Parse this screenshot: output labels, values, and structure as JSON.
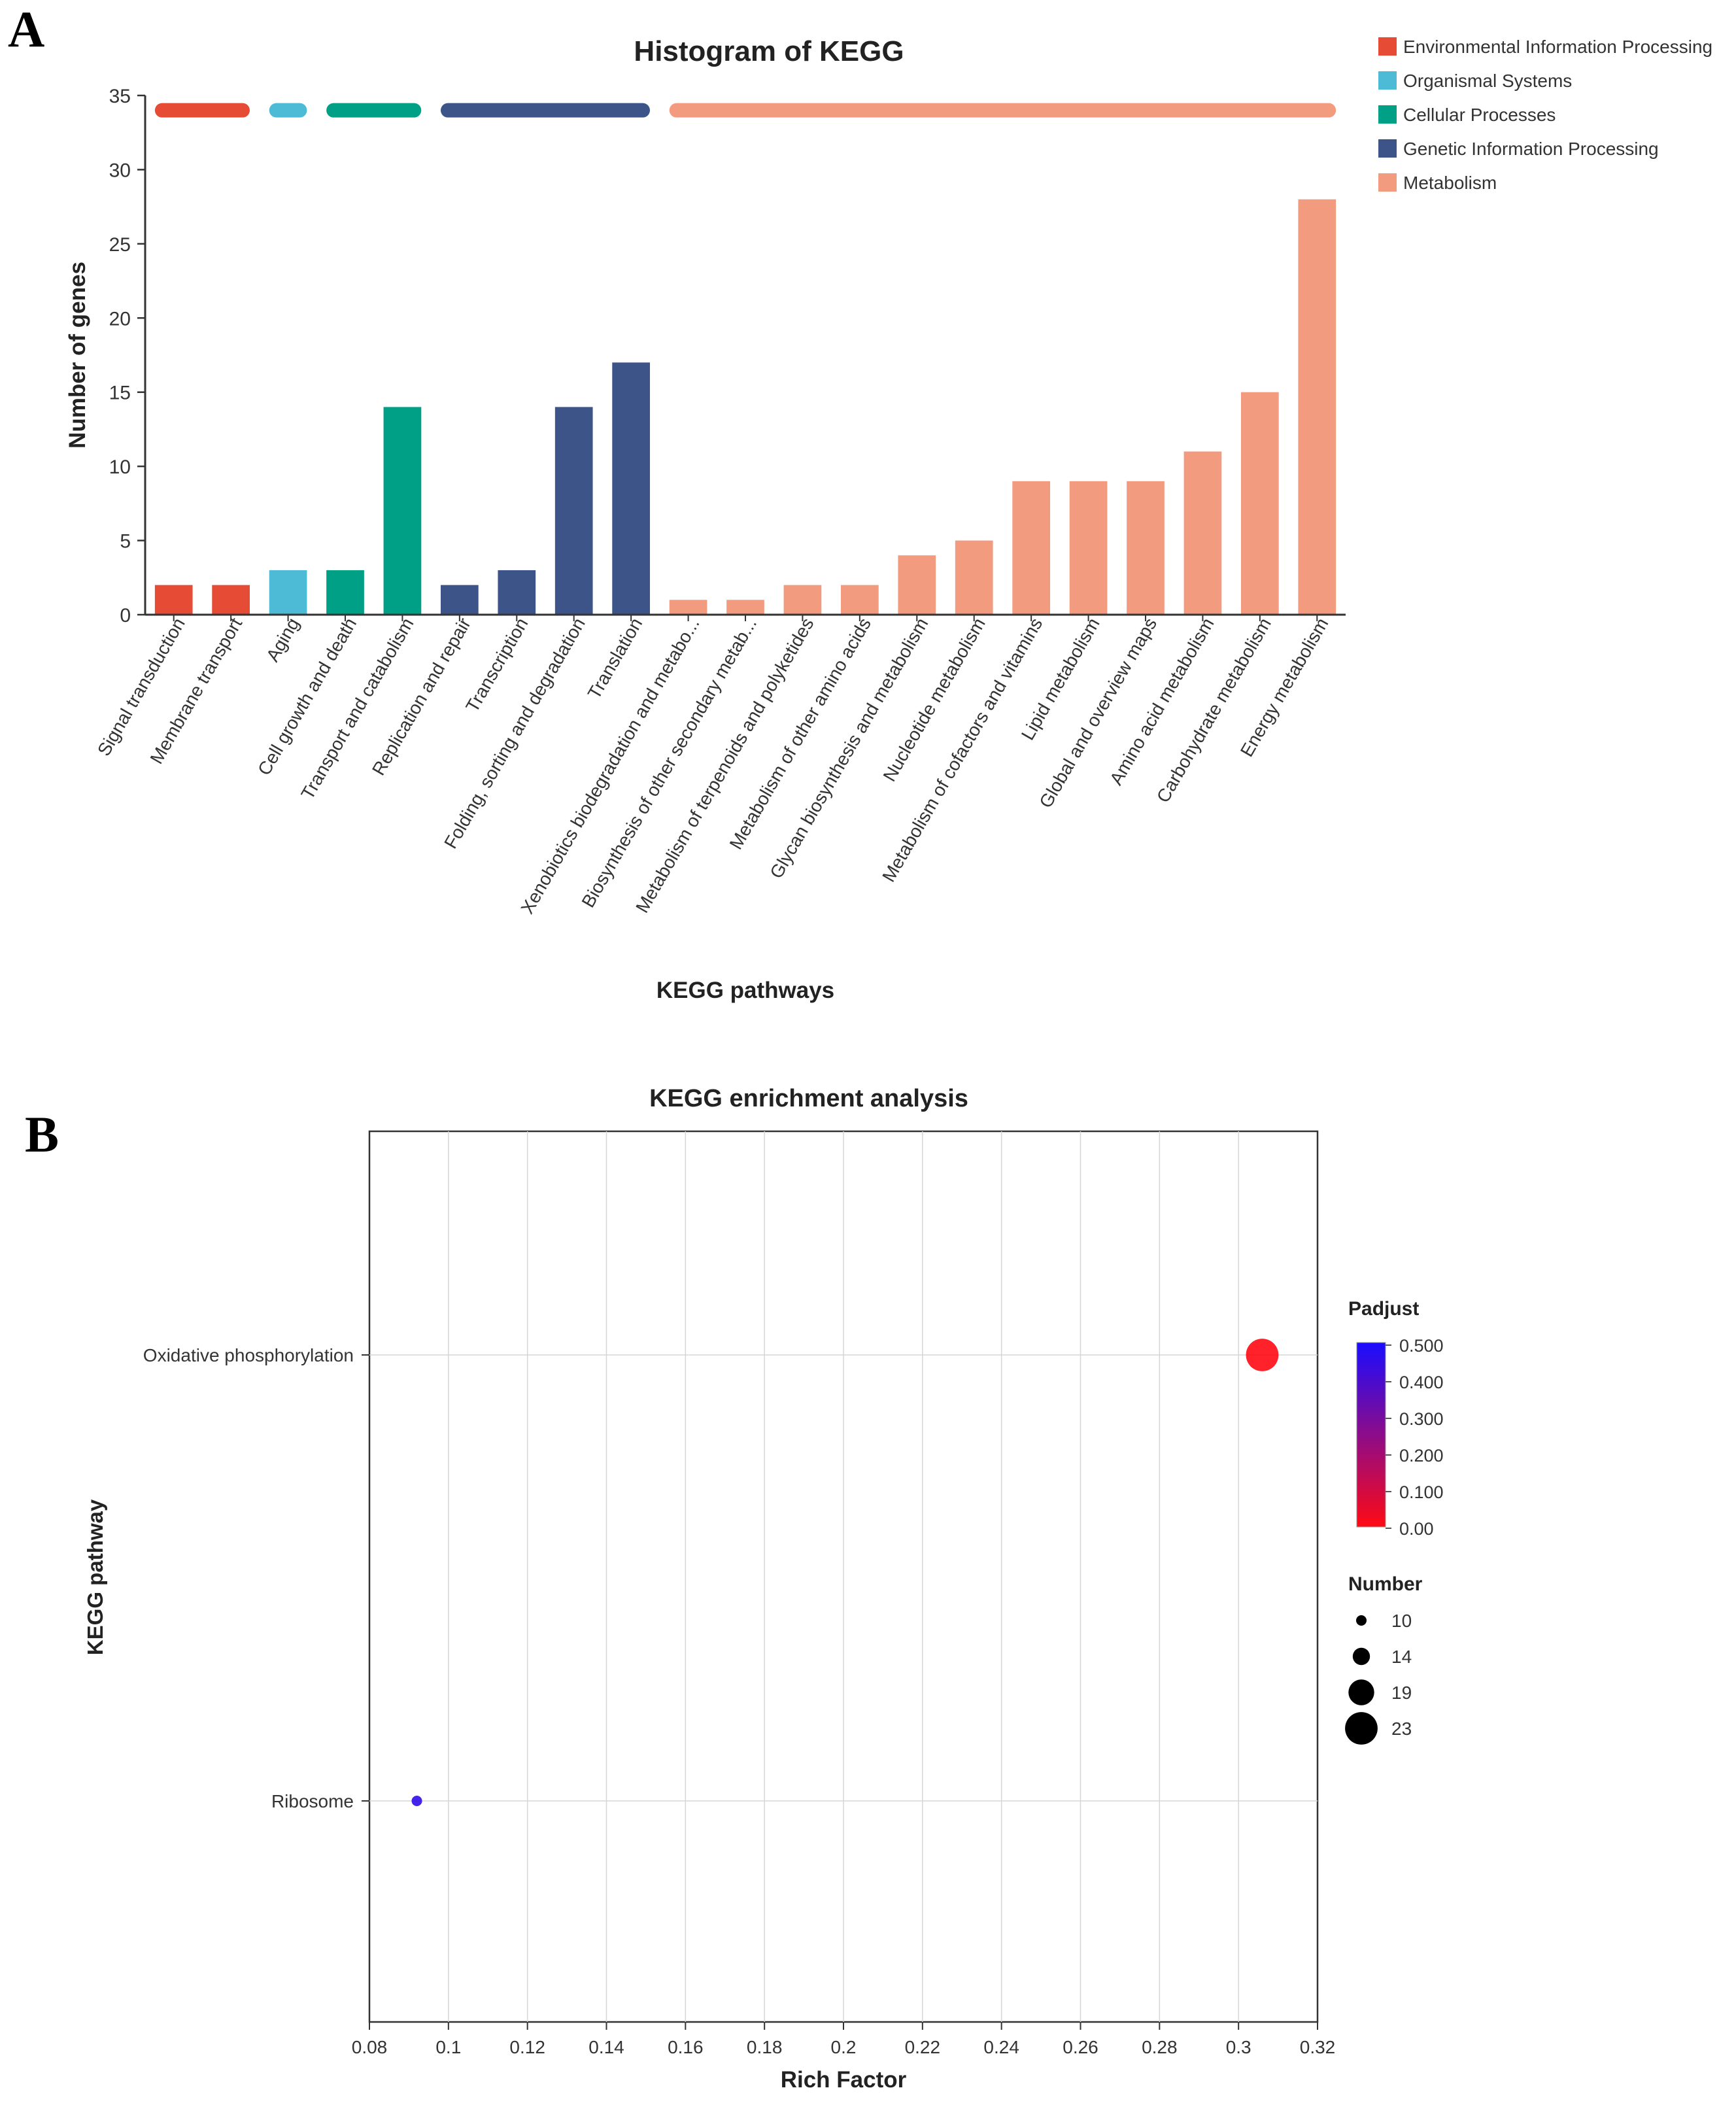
{
  "panel_a_label": "A",
  "panel_b_label": "B",
  "chart_data": [
    {
      "type": "bar",
      "title": "Histogram of KEGG",
      "xlabel": "KEGG pathways",
      "ylabel": "Number of genes",
      "ylim": [
        0,
        35
      ],
      "yticks": [
        "0",
        "5",
        "10",
        "15",
        "20",
        "25",
        "30",
        "35"
      ],
      "categories": [
        "Signal transduction",
        "Membrane transport",
        "Aging",
        "Cell growth and death",
        "Transport and catabolism",
        "Replication and repair",
        "Transcription",
        "Folding, sorting and degradation",
        "Translation",
        "Xenobiotics biodegradation and metabo...",
        "Biosynthesis of other secondary metab...",
        "Metabolism of terpenoids and polyketides",
        "Metabolism of other amino acids",
        "Glycan biosynthesis and metabolism",
        "Nucleotide metabolism",
        "Metabolism of cofactors and vitamins",
        "Lipid metabolism",
        "Global and overview maps",
        "Amino acid metabolism",
        "Carbohydrate metabolism",
        "Energy metabolism"
      ],
      "values": [
        2,
        2,
        3,
        3,
        14,
        2,
        3,
        14,
        17,
        1,
        1,
        2,
        2,
        4,
        5,
        9,
        9,
        9,
        11,
        15,
        28
      ],
      "groups": [
        0,
        0,
        1,
        2,
        2,
        3,
        3,
        3,
        3,
        4,
        4,
        4,
        4,
        4,
        4,
        4,
        4,
        4,
        4,
        4,
        4
      ],
      "legend": [
        {
          "name": "Environmental Information Processing",
          "color": "#e64b35"
        },
        {
          "name": "Organismal Systems",
          "color": "#4dbbd5"
        },
        {
          "name": "Cellular Processes",
          "color": "#00a087"
        },
        {
          "name": "Genetic Information Processing",
          "color": "#3c5488"
        },
        {
          "name": "Metabolism",
          "color": "#f39b7f"
        }
      ],
      "legend_position": "top-right"
    },
    {
      "type": "scatter",
      "title": "KEGG enrichment analysis",
      "xlabel": "Rich Factor",
      "ylabel": "KEGG pathway",
      "xlim": [
        0.08,
        0.32
      ],
      "xticks": [
        "0.08",
        "0.1",
        "0.12",
        "0.14",
        "0.16",
        "0.18",
        "0.2",
        "0.22",
        "0.24",
        "0.26",
        "0.28",
        "0.3",
        "0.32"
      ],
      "categories": [
        "Oxidative phosphorylation",
        "Ribosome"
      ],
      "points": [
        {
          "pathway": "Oxidative phosphorylation",
          "rich_factor": 0.306,
          "number": 23,
          "padjust": 0.0
        },
        {
          "pathway": "Ribosome",
          "rich_factor": 0.092,
          "number": 10,
          "padjust": 0.45
        }
      ],
      "color_legend": {
        "title": "Padjust",
        "ticks": [
          "0.500",
          "0.400",
          "0.300",
          "0.200",
          "0.100",
          "0.00"
        ],
        "high_color": "#1a0dff",
        "low_color": "#ff0a14"
      },
      "size_legend": {
        "title": "Number",
        "items": [
          {
            "label": "10",
            "value": 10
          },
          {
            "label": "14",
            "value": 14
          },
          {
            "label": "19",
            "value": 19
          },
          {
            "label": "23",
            "value": 23
          }
        ]
      }
    }
  ]
}
